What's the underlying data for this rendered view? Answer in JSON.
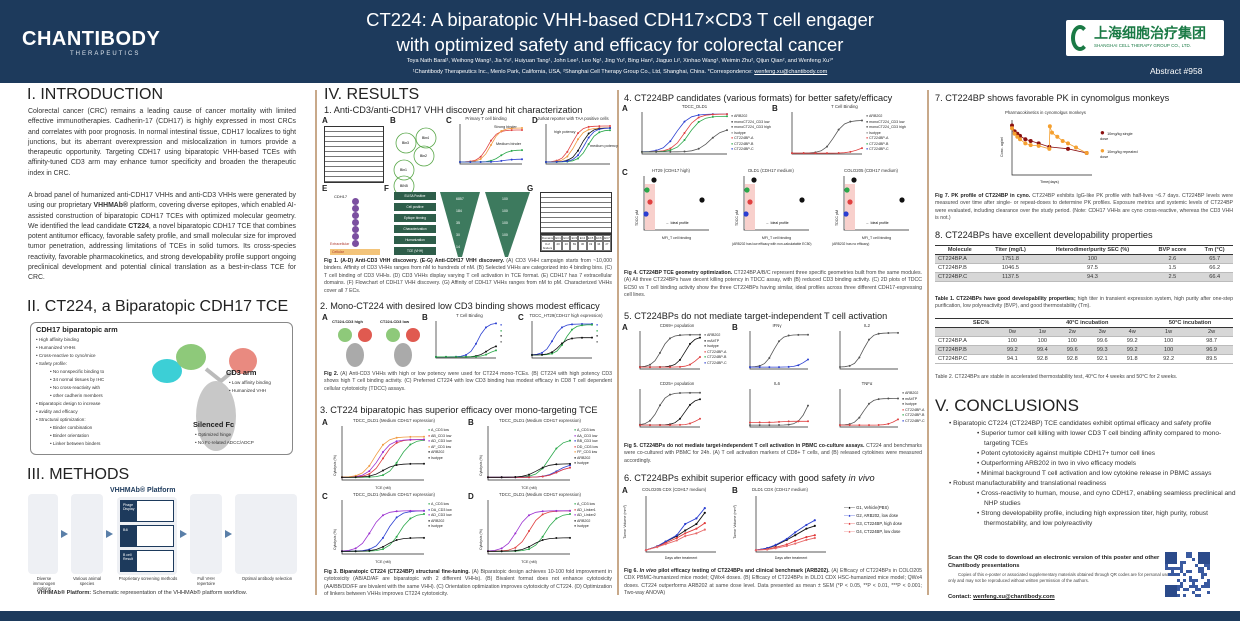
{
  "header": {
    "logo": "CHANTIBODY",
    "logo_sub": "THERAPEUTICS",
    "title_line1": "CT224: A biparatopic VHH-based CDH17×CD3 T cell engager",
    "title_line2": "with optimized safety and efficacy for colorectal cancer",
    "authors": "Toya Nath Baral¹, Weihong Wang¹, Jia Yu², Huiyuan Tang¹, John Lee¹, Leo Ng¹, Jing Yu², Bing Han², Jiaguo Li², Xinhao Wang¹, Weimin Zhu², Qijun Qian², and Wenfeng Xu¹*",
    "affiliations": "¹Chantibody Therapeutics Inc., Menlo Park, California, USA, ²Shanghai Cell Therapy Group Co., Ltd, Shanghai, China. *Correspondence: ",
    "email": "wenfeng.xu@chantibody.com",
    "partner_cn": "上海细胞治疗集团",
    "partner_en": "SHANGHAI CELL THERAPY GROUP CO., LTD.",
    "abstract": "Abstract #958",
    "colors": {
      "navy": "#1d3a5c",
      "divider": "#c8a98a"
    }
  },
  "intro": {
    "heading": "I. INTRODUCTION",
    "p1": "Colorectal cancer (CRC) remains a leading cause of cancer mortality with limited effective immunotherapies. Cadherin-17 (CDH17) is highly expressed in most CRCs and correlates with poor prognosis. In normal intestinal tissue, CDH17 localizes to tight junctions, but its aberrant overexpression and mislocalization in tumors provide a therapeutic opportunity. Targeting CDH17 using biparatopic VHH-based TCEs with affinity-tuned CD3 arm may enhance tumor specificity and broaden the therapeutic index in CRC.",
    "p2a": "A broad panel of humanized anti-CDH17 VHHs and anti-CD3 VHHs were generated by using our proprietary ",
    "p2b": "VHHMAb®",
    "p2c": " platform, covering diverse epitopes, which enabled AI-assisted construction of biparatopic CDH17 TCEs with optimized molecular geometry. We identified the lead candidate ",
    "p2d": "CT224",
    "p2e": ", a novel biparatopic CDH17 TCE that combines potent antitumor efficacy, favorable safety profile, and small molecular size for improved tumor penetration, addressing limitations of TCEs in solid tumors. Its cross-species reactivity, favorable pharmacokinetics, and strong developability profile support ongoing preclinical development and potential clinical translation as a best-in-class TCE for CRC."
  },
  "ct224": {
    "heading": "II. CT224, a Biparatopic CDH17 TCE",
    "cdh17_title": "CDH17 biparatopic arm",
    "cdh17_items": [
      "High affinity binding",
      "Humanized VHHs",
      "Cross-reactive to cyno/mice",
      "Safety profile:",
      "No nonspecific binding to",
      "34 normal tissues by IHC",
      "No cross-reactivity with",
      "other cadherin members",
      "Biparatopic design to increase",
      "avidity and efficacy",
      "Structural optimization:",
      "Binder combination",
      "Binder orientation",
      "Linker between binders"
    ],
    "cd3_title": "CD3 arm",
    "cd3_items": [
      "Low affinity binding",
      "Humanized VHH"
    ],
    "fc_title": "Silenced Fc",
    "fc_items": [
      "Optimized hinge",
      "No Fc-related ADCC/ADCP"
    ]
  },
  "methods": {
    "heading": "III. METHODS",
    "platform_title": "VHHMAb® Platform",
    "steps": [
      "Diverse immunogen options",
      "Various animal species",
      "Proprietary screening methods",
      "Full VHH repertoire",
      "Optimal antibody selection"
    ],
    "screening": [
      "Phage Display",
      "B4i",
      "B cell Result"
    ],
    "caption_bold": "VHHMAb® Platform:",
    "caption": " Schematic representation of the VHHMAb® platform workflow."
  },
  "results": {
    "heading": "IV. RESULTS",
    "s1": {
      "title": "1. Anti-CD3/anti-CDH17 VHH discovery and hit characterization",
      "panels": [
        "A",
        "B",
        "C",
        "D",
        "E",
        "F",
        "G"
      ],
      "c_title": "Primary T cell binding",
      "d_title": "Jurkat reporter with TAA positive cells",
      "c_notes": [
        "Strong binder",
        "Medium binder"
      ],
      "d_notes": [
        "high potency",
        "medium potency"
      ],
      "bins": [
        "Bin3",
        "Bin4",
        "Bin2",
        "Bin1",
        "BIN5"
      ],
      "e_label": "CDH17",
      "e_notes": [
        "Extracellular",
        "Cellular"
      ],
      "flow": [
        "ELISA Positive",
        "Cell positive",
        "Epitope binning",
        "Characterization",
        "Humanization",
        "TCE (VHH)"
      ],
      "funnel1": [
        "6857",
        "184",
        "35",
        "30",
        "14"
      ],
      "funnel2": [
        "100",
        "100",
        "100",
        "100"
      ],
      "g_bins": [
        "Domains",
        "EC1",
        "EC2",
        "EC3",
        "EC4",
        "EC5",
        "EC6",
        "EC7"
      ],
      "g_counts": [
        "# of binders",
        "20",
        "10",
        "69",
        "36",
        "19",
        "34",
        "27"
      ],
      "cap_bold": "Fig 1. (A-D) Anti-CD3 VHH discovery. (E-G) Anti-CDH17 VHH discovery.",
      "cap": " (A) CD3 VHH campaign starts from ~10,000 binders. Affinity of CD3 VHHs ranges from nM to hundreds of nM. (B) Selected VHHs are categorized into 4 binding bins. (C) T cell binding of CD3 VHHs. (D) CD3 VHHs display varying T cell activation in TCE format. (E) CDH17 has 7 extracellular domains. (F) Flowchart of CDH17 VHH discovery. (G) Affinity of CDH17 VHHs ranges from nM to pM. Characterized VHHs cover all 7 ECs."
    },
    "s2": {
      "title": "2. Mono-CT224 with desired low CD3 binding shows modest efficacy",
      "a_labels": [
        "CT224-CD3 high",
        "CT224-CD3 low"
      ],
      "b_title": "T Cell Binding",
      "c_title": "TDCC_HT29(CDH17 high expression)",
      "cap_bold": "Fig 2.",
      "cap": " (A) Anti-CD3 VHHs with high or low potency were used for CT224 mono-TCEs. (B) CT224 with high potency CD3 shows high T cell binding activity. (C) Preferred CT224 with low CD3 binding has modest efficacy in CD8 T cell dependent cellular cytotoxicity (TDCC) assays."
    },
    "s3": {
      "title": "3. CT224 biparatopic has superior efficacy over mono-targeting TCE",
      "panel_title": "TDCC_DLD1 (Medium CDH17 expression)",
      "legends": [
        [
          "A_CD3 low",
          "AB_CD3 low",
          "AD_CD3 low",
          "AF_CD3 low",
          "ARB202",
          "Isotype"
        ],
        [
          "A_CD3 low",
          "AA_CD3 low",
          "BB_CD3 low",
          "DD_CD3 low",
          "FF_CD3 low",
          "ARB202",
          "Isotype"
        ],
        [
          "A_CD3 low",
          "DA_CD3 low",
          "AD_CD3 low",
          "ARB202",
          "Isotype"
        ],
        [
          "A_CD3 low",
          "AD_Linker1",
          "AD_Linker2",
          "ARB202",
          "Isotype"
        ]
      ],
      "xlabel": "TCE (nM)",
      "ylabel": "Cytolysis (%)",
      "cap_bold": "Fig 3. Biparatopic CT224 (CT224BP) structural fine-tuning.",
      "cap": " (A) Biparatopic design achieves 10-100 fold improvement in cytotoxicity (AB/AD/AF are biparatopic with 2 different VHHs). (B) Bivalent format does not enhance cytotoxicity (AA/BB/DD/FF are bivalent with the same VHH). (C) Orientation optimization improves cytotoxicity of CT224. (D) Optimization of linkers between VHHs improves CT224 cytotoxicity."
    },
    "s4": {
      "title": "4. CT224BP candidates (various formats) for better safety/efficacy",
      "a_title": "TDCC_DLD1",
      "b_title": "T Cell Binding",
      "legend": [
        "ARB202",
        "monoCT224_CD3 low",
        "monoCT224_CD3 high",
        "Isotype",
        "CT224BP-A",
        "CT224BP-B",
        "CT224BP-C"
      ],
      "c_titles": [
        "HT29 (CDH17 high)",
        "DLD1 (CDH17 medium)",
        "COLO205 (CDH17 medium)"
      ],
      "c_xlabel": "MFI_T cell binding",
      "c_ylabel": "TDCC pM",
      "ideal": "Ideal profile",
      "c_notes": [
        "(ARB202 has low efficacy with non-calculatable EC50)",
        "(ARB202 has no efficacy)"
      ],
      "cap_bold": "Fig 4. CT224BP TCE geometry optimization.",
      "cap": " CT224BP.A/B/C represent three specific geometries built from the same modules. (A) All three CT224BPs have decent killing potency in TDCC assay, with (B) reduced CD3 binding activity. (C) 2D plots of TDCC EC50 vs T cell binding activity show the three CT224BPs having similar, ideal profiles across three different CDH17-expressing cell lines."
    },
    "s5": {
      "title": "5. CT224BPs do not mediate target-independent T cell activation",
      "titles": [
        "CD69+ population",
        "CD25+ population",
        "IFNγ",
        "IL2",
        "IL6",
        "TNFα"
      ],
      "legend": [
        "ARB202",
        "mAbTP",
        "Isotype",
        "CT224BP-A",
        "CT224BP-B",
        "CT224BP-C"
      ],
      "cap_bold": "Fig 5. CT224BPs do not mediate target-independent T cell activation in PBMC co-culture assays.",
      "cap": " CT224 and benchmarks were co-cultured with PBMC for 24h. (A) T cell activation markers of CD8+ T cells, and (B) released cytokines were measured accordingly."
    },
    "s6": {
      "title_a": "6. CT224BPs exhibit superior efficacy with good safety ",
      "title_b": "in vivo",
      "a_title": "COLO205 CDX (CDH17 medium)",
      "b_title": "DLD1 CDX (CDH17 medium)",
      "xlabel": "Days after treatment",
      "ylabel": "Tumor Volume (mm³)",
      "legend": [
        "G1, Vehicle(PBS)",
        "G2, ARB202, low dose",
        "G3, CT224BP, high dose",
        "G4, CT224BP, low dose"
      ],
      "legend_colors": [
        "#111111",
        "#2b3fd1",
        "#e03a3a",
        "#e86a6a"
      ],
      "days": [
        0,
        4,
        7,
        11,
        14,
        18,
        21
      ],
      "colo205": [
        [
          100,
          300,
          550,
          850,
          1150,
          1500,
          2100
        ],
        [
          100,
          300,
          560,
          900,
          1500,
          1800,
          2350
        ],
        [
          100,
          280,
          480,
          750,
          1000,
          1250,
          1550
        ],
        [
          100,
          260,
          420,
          620,
          850,
          1000,
          1200
        ]
      ],
      "dld1": [
        [
          100,
          200,
          350,
          650,
          900,
          1250,
          1400
        ],
        [
          100,
          210,
          380,
          700,
          1050,
          1450,
          1700
        ],
        [
          100,
          150,
          250,
          400,
          600,
          800,
          900
        ],
        [
          100,
          130,
          200,
          320,
          450,
          650,
          750
        ]
      ],
      "cap_bold_a": "Fig 6. ",
      "cap_it": "In vivo",
      "cap_bold_b": " pilot efficacy testing of CT224BPs and clinical benchmark (ARB202).",
      "cap": " (A) Efficacy of CT224BPs in COLO205 CDX PBMC-humanized mice model; QWx4 doses. (B) Efficacy of CT224BPs in DLD1 CDX HSC-humanized mice model; QWx4 doses. CT224 outperforms ARB202 at same dose level. Data presented as mean ± SEM (*P < 0.05, **P < 0.01, ***P < 0.001; Two-way ANOVA)"
    },
    "s7": {
      "title": "7. CT224BP shows favorable PK in cynomolgus monkeys",
      "chart_title": "Pharmacokinetics in cynomolgus monkeys",
      "xlabel": "Time(days)",
      "ylabel": "Conc. ug/ml",
      "legend": [
        "10mg/kg single dose",
        "10mg/kg repeated dose"
      ],
      "colors": [
        "#8b1010",
        "#f5a030"
      ],
      "cap_bold": "Fig 7. PK profile of CT224BP in cyno.",
      "cap": " CT224BP exhibits IgG-like PK profile with half-lives ~6.7 days. CT224BP levels were measured over time after single- or repeat-doses to determine PK profiles. Exposure metrics and systemic levels of CT224BP were evaluated, including clearance over the study period. (Note: CDH17 VHHs are cyno cross-reactive, whereas the CD3 VHH is not.)"
    },
    "s8": {
      "title": "8. CT224BPs have excellent developability properties",
      "t1_headers": [
        "Molecule",
        "Titer (mg/L)",
        "Heterodimer/purity SEC (%)",
        "BVP score",
        "Tm (°C)"
      ],
      "t1_rows": [
        [
          "CT224BP.A",
          "1751.8",
          "100",
          "2.6",
          "65.7"
        ],
        [
          "CT224BP.B",
          "1046.5",
          "97.5",
          "1.5",
          "66.2"
        ],
        [
          "CT224BP.C",
          "1137.5",
          "94.3",
          "2.5",
          "66.4"
        ]
      ],
      "t1_cap_bold": "Table 1. CT224BPs have good developability properties;",
      "t1_cap": " high titer in transient expression system, high purity after one-step purification, low polyreactivity (BVP), and good thermostability (Tm).",
      "t2_group": [
        "SEC%",
        "40°C incubation",
        "50°C incubation"
      ],
      "t2_sub": [
        "",
        "0w",
        "1w",
        "2w",
        "3w",
        "4w",
        "1w",
        "2w"
      ],
      "t2_rows": [
        [
          "CT224BP.A",
          "100",
          "100",
          "100",
          "99.6",
          "99.2",
          "100",
          "98.7"
        ],
        [
          "CT224BP.B",
          "99.2",
          "99.4",
          "99.6",
          "99.3",
          "99.2",
          "100",
          "96.9"
        ],
        [
          "CT224BP.C",
          "94.1",
          "92.8",
          "92.8",
          "92.1",
          "91.8",
          "92.2",
          "89.5"
        ]
      ],
      "t2_cap": "Table 2. CT224BPs are stable in accelerated thermostability test, 40°C for 4 weeks and 50°C for 2 weeks."
    }
  },
  "conclusions": {
    "heading": "V. CONCLUSIONS",
    "items": [
      {
        "text": "Biparatopic CT224 (CT224BP) TCE candidates exhibit optimal efficacy and safety profile",
        "sub": false
      },
      {
        "text": "Superior tumor cell killing with lower CD3 T cell binding affinity compared to mono-targeting TCEs",
        "sub": true
      },
      {
        "text": "Potent cytotoxicity against multiple CDH17+ tumor cell lines",
        "sub": true
      },
      {
        "text": "Outperforming ARB202 in two in vivo efficacy models",
        "sub": true
      },
      {
        "text": "Minimal background T cell activation and low cytokine release in PBMC assays",
        "sub": true
      },
      {
        "text": "Robust manufacturability and translational readiness",
        "sub": false
      },
      {
        "text": "Cross-reactivity to human, mouse, and cyno CDH17, enabling seamless preclinical and NHP studies",
        "sub": true
      },
      {
        "text": "Strong developability profile, including high expression titer, high purity, robust thermostability, and low polyreactivity",
        "sub": true
      }
    ],
    "qr_title": "Scan the QR code to download an electronic version of this poster and other Chantibody presentations",
    "qr_note": "Copies of this e-poster or associated supplementary materials obtained through QR codes are for personal use only and may not be reproduced without written permission of the authors.",
    "contact_label": "Contact: ",
    "contact": "wenfeng.xu@chantibody.com"
  }
}
